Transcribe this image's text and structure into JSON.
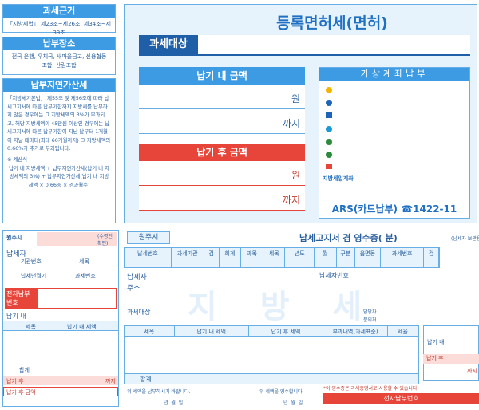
{
  "sidebar": {
    "basis": {
      "title": "과세근거",
      "text": "「지방세법」 제23조~제26조, 제34조~제39조"
    },
    "place": {
      "title": "납부장소",
      "text": "전국 은행, 우체국, 새마을금고, 신용협동조합, 산림조합"
    },
    "penalty": {
      "title": "납부지연가산세",
      "text": "「지방세기본법」 제55조 및 제56조에 따라 납세고지서에 따른 납부기한까지 지방세를 납부하지 않은 경우에는 그 지방세액의 3%가 부과되고, 해당 지방세액이 45만원 이상인 경우에는 납세고지서에 따른 납부기한이 지난 날부터 1개월이 지날 때마다(최대 60개월까지) 그 지방세액의 0.66%가 추가로 부과됩니다.",
      "formula_title": "※ 계산식",
      "formula": "납기 내 지방세액 + 납부지연가산세(납기 내 지방세액의 3%) + 납부지연가산세(납기 내 지방세액 × 0.66% × 경과월수)"
    }
  },
  "notice": {
    "title": "등록면허세(면허)",
    "subject": "과세대상",
    "due_in": {
      "label": "납기 내 금액",
      "unit": "원",
      "until": "까지"
    },
    "due_after": {
      "label": "납기 후 금액",
      "unit": "원",
      "until": "까지"
    },
    "virtual": {
      "title": "가상계좌납부",
      "account": "지방세입계좌",
      "ars": "ARS(카드납부) ☎1422-11"
    }
  },
  "stub": {
    "city": "원주시",
    "confirm": "(수령인 확인)",
    "payer": "납세자",
    "agency_no": "기관번호",
    "tax_item": "세목",
    "period": "납세년월기",
    "tax_no": "과세번호",
    "e_no": "전자납부번호",
    "due_in": "납기 내",
    "col_item": "세목",
    "col_amount": "납기 내 세액",
    "total": "합계",
    "due_after": "납기 후",
    "until": "까지",
    "after_amount": "납기 후 금액"
  },
  "receipt": {
    "city": "원주시",
    "title": "납세고지서 겸 영수증(       분)",
    "keep": "(납세자 보관용)",
    "tax_no_header": [
      "납세번호",
      "과세기관",
      "검",
      "회계",
      "과목",
      "세목",
      "년도",
      "월",
      "구분",
      "읍면동",
      "과세번호",
      "검"
    ],
    "payer": "납세자",
    "address": "주소",
    "payer_no": "납세자번호",
    "watermark": "지 방 세",
    "subject": "과세대상",
    "officer": "담당자",
    "contact": "문의처",
    "columns": [
      "세목",
      "납기 내 세액",
      "납기 후 세액",
      "부과내역(과세표준)",
      "세율"
    ],
    "total": "합계",
    "request": "위 세액을 납부하시기 바랍니다.",
    "received": "위 세액을 영수합니다.",
    "date": "년  월  일",
    "note": "*이 영수증은 과세증명서로 사용할 수 있습니다.",
    "e_no": "전자납부번호",
    "side_due_in": "납기 내",
    "side_due_after": "납기 후",
    "side_until": "까지"
  }
}
